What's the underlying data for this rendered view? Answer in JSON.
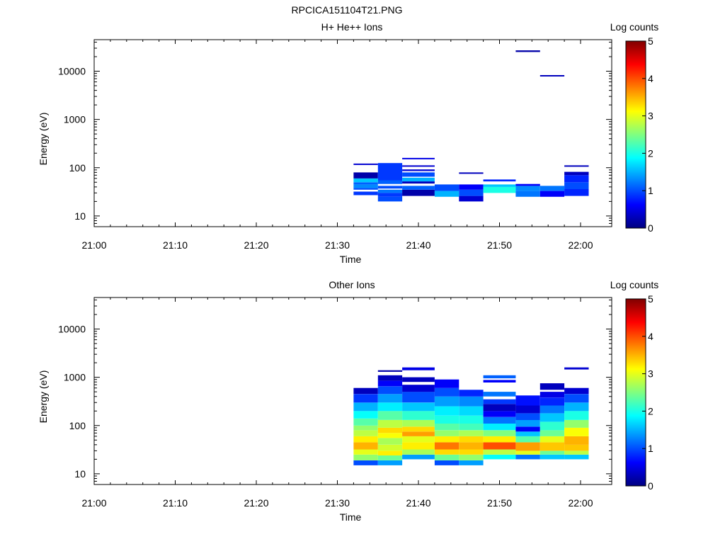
{
  "figure": {
    "title": "RPCICA151104T21.PNG"
  },
  "colorscale": {
    "name": "jet",
    "stops": [
      "#000080",
      "#0000ff",
      "#0080ff",
      "#00ffff",
      "#80ff80",
      "#ffff00",
      "#ff8000",
      "#ff0000",
      "#800000"
    ]
  },
  "chart_data": [
    {
      "type": "heatmap",
      "title": "H+ He++ Ions",
      "xlabel": "Time",
      "ylabel": "Energy (eV)",
      "x_ticks": [
        "21:00",
        "21:10",
        "21:20",
        "21:30",
        "21:40",
        "21:50",
        "22:00"
      ],
      "y_ticks": [
        "10",
        "100",
        "1000",
        "10000"
      ],
      "y_scale": "log",
      "ylim": [
        6,
        45000
      ],
      "colorbar_label": "Log counts",
      "colorbar_ticks": [
        "0",
        "1",
        "2",
        "3",
        "4",
        "5"
      ],
      "clim": [
        0,
        5
      ],
      "time_bins": [
        {
          "t0": "21:32",
          "t1": "21:35",
          "cells": [
            [
              27,
              32,
              0.9
            ],
            [
              35,
              38,
              1.0
            ],
            [
              38,
              45,
              1.3
            ],
            [
              45,
              50,
              1.1
            ],
            [
              50,
              60,
              1.6
            ],
            [
              60,
              80,
              0.2
            ],
            [
              115,
              122,
              0.4
            ]
          ]
        },
        {
          "t0": "21:35",
          "t1": "21:38",
          "cells": [
            [
              20,
              25,
              1.0
            ],
            [
              25,
              30,
              0.9
            ],
            [
              30,
              35,
              1.2
            ],
            [
              37,
              42,
              1.0
            ],
            [
              46,
              55,
              1.1
            ],
            [
              55,
              125,
              0.9
            ]
          ]
        },
        {
          "t0": "21:38",
          "t1": "21:42",
          "cells": [
            [
              26,
              35,
              0.2
            ],
            [
              35,
              42,
              1.1
            ],
            [
              47,
              52,
              0.3
            ],
            [
              52,
              62,
              1.5
            ],
            [
              65,
              80,
              1.0
            ],
            [
              85,
              92,
              0.4
            ],
            [
              105,
              112,
              0.4
            ],
            [
              150,
              160,
              0.5
            ]
          ]
        },
        {
          "t0": "21:42",
          "t1": "21:45",
          "cells": [
            [
              25,
              33,
              1.5
            ],
            [
              33,
              45,
              1.0
            ]
          ]
        },
        {
          "t0": "21:45",
          "t1": "21:48",
          "cells": [
            [
              20,
              26,
              0.4
            ],
            [
              26,
              35,
              1.0
            ],
            [
              35,
              45,
              0.6
            ],
            [
              75,
              80,
              0.3
            ]
          ]
        },
        {
          "t0": "21:48",
          "t1": "21:52",
          "cells": [
            [
              30,
              40,
              2.0
            ],
            [
              40,
              45,
              1.6
            ],
            [
              52,
              57,
              0.8
            ]
          ]
        },
        {
          "t0": "21:52",
          "t1": "21:55",
          "cells": [
            [
              25,
              33,
              1.2
            ],
            [
              33,
              42,
              1.3
            ],
            [
              42,
              46,
              0.6
            ],
            [
              25000,
              27000,
              0.2
            ]
          ]
        },
        {
          "t0": "21:55",
          "t1": "21:58",
          "cells": [
            [
              25,
              33,
              0.6
            ],
            [
              33,
              42,
              1.2
            ],
            [
              7800,
              8300,
              0.3
            ]
          ]
        },
        {
          "t0": "21:58",
          "t1": "22:01",
          "cells": [
            [
              26,
              36,
              0.8
            ],
            [
              36,
              50,
              1.0
            ],
            [
              50,
              70,
              0.8
            ],
            [
              70,
              82,
              0.3
            ],
            [
              105,
              112,
              0.3
            ]
          ]
        }
      ]
    },
    {
      "type": "heatmap",
      "title": "Other Ions",
      "xlabel": "Time",
      "ylabel": "Energy (eV)",
      "x_ticks": [
        "21:00",
        "21:10",
        "21:20",
        "21:30",
        "21:40",
        "21:50",
        "22:00"
      ],
      "y_ticks": [
        "10",
        "100",
        "1000",
        "10000"
      ],
      "y_scale": "log",
      "ylim": [
        6,
        45000
      ],
      "colorbar_label": "Log counts",
      "colorbar_ticks": [
        "0",
        "1",
        "2",
        "3",
        "4",
        "5"
      ],
      "clim": [
        0,
        5
      ],
      "time_bins": [
        {
          "t0": "21:32",
          "t1": "21:35",
          "cells": [
            [
              15,
              19,
              1.0
            ],
            [
              19,
              25,
              2.6
            ],
            [
              25,
              32,
              3.0
            ],
            [
              32,
              45,
              3.5
            ],
            [
              45,
              60,
              3.2
            ],
            [
              60,
              80,
              2.8
            ],
            [
              80,
              100,
              2.6
            ],
            [
              100,
              140,
              2.3
            ],
            [
              140,
              200,
              1.9
            ],
            [
              200,
              300,
              1.5
            ],
            [
              300,
              450,
              0.9
            ],
            [
              450,
              600,
              0.3
            ]
          ]
        },
        {
          "t0": "21:35",
          "t1": "21:38",
          "cells": [
            [
              15,
              19,
              1.4
            ],
            [
              19,
              24,
              2.4
            ],
            [
              24,
              30,
              3.2
            ],
            [
              30,
              40,
              2.9
            ],
            [
              40,
              55,
              2.7
            ],
            [
              55,
              70,
              3.1
            ],
            [
              70,
              90,
              3.3
            ],
            [
              90,
              130,
              2.8
            ],
            [
              130,
              200,
              2.3
            ],
            [
              200,
              300,
              1.8
            ],
            [
              300,
              450,
              1.4
            ],
            [
              450,
              650,
              1.0
            ],
            [
              650,
              850,
              0.6
            ],
            [
              850,
              1100,
              0.3
            ],
            [
              1300,
              1400,
              0.2
            ]
          ]
        },
        {
          "t0": "21:38",
          "t1": "21:42",
          "cells": [
            [
              20,
              25,
              1.4
            ],
            [
              25,
              32,
              2.7
            ],
            [
              32,
              45,
              3.2
            ],
            [
              45,
              60,
              3.0
            ],
            [
              60,
              75,
              3.6
            ],
            [
              75,
              95,
              3.3
            ],
            [
              95,
              130,
              2.7
            ],
            [
              130,
              200,
              2.1
            ],
            [
              200,
              300,
              1.6
            ],
            [
              300,
              500,
              1.0
            ],
            [
              500,
              700,
              0.4
            ],
            [
              800,
              1000,
              0.3
            ],
            [
              1400,
              1600,
              0.5
            ]
          ]
        },
        {
          "t0": "21:42",
          "t1": "21:45",
          "cells": [
            [
              15,
              19,
              1.0
            ],
            [
              19,
              25,
              2.4
            ],
            [
              25,
              32,
              3.3
            ],
            [
              32,
              45,
              3.8
            ],
            [
              45,
              60,
              3.2
            ],
            [
              60,
              80,
              2.6
            ],
            [
              80,
              110,
              2.3
            ],
            [
              110,
              160,
              2.0
            ],
            [
              160,
              250,
              1.8
            ],
            [
              250,
              400,
              1.4
            ],
            [
              400,
              600,
              1.0
            ],
            [
              600,
              900,
              0.6
            ]
          ]
        },
        {
          "t0": "21:45",
          "t1": "21:48",
          "cells": [
            [
              15,
              19,
              1.4
            ],
            [
              19,
              25,
              2.6
            ],
            [
              25,
              32,
              3.3
            ],
            [
              32,
              45,
              3.5
            ],
            [
              45,
              60,
              3.3
            ],
            [
              60,
              80,
              2.7
            ],
            [
              80,
              110,
              2.2
            ],
            [
              110,
              160,
              2.0
            ],
            [
              160,
              250,
              1.7
            ],
            [
              250,
              400,
              1.3
            ],
            [
              400,
              550,
              0.8
            ]
          ]
        },
        {
          "t0": "21:48",
          "t1": "21:52",
          "cells": [
            [
              20,
              25,
              1.9
            ],
            [
              25,
              32,
              2.8
            ],
            [
              32,
              45,
              4.0
            ],
            [
              45,
              60,
              3.2
            ],
            [
              60,
              80,
              2.5
            ],
            [
              80,
              110,
              1.8
            ],
            [
              110,
              150,
              1.2
            ],
            [
              150,
              200,
              0.6
            ],
            [
              200,
              280,
              0.3
            ],
            [
              280,
              350,
              0.9
            ],
            [
              400,
              500,
              1.2
            ],
            [
              780,
              880,
              0.6
            ],
            [
              950,
              1100,
              1.1
            ]
          ]
        },
        {
          "t0": "21:52",
          "t1": "21:55",
          "cells": [
            [
              20,
              25,
              1.2
            ],
            [
              25,
              30,
              3.0
            ],
            [
              30,
              45,
              3.6
            ],
            [
              45,
              60,
              2.3
            ],
            [
              60,
              75,
              1.6
            ],
            [
              75,
              95,
              0.6
            ],
            [
              95,
              130,
              1.4
            ],
            [
              130,
              180,
              1.0
            ],
            [
              180,
              260,
              0.4
            ],
            [
              260,
              420,
              0.7
            ]
          ]
        },
        {
          "t0": "21:55",
          "t1": "21:58",
          "cells": [
            [
              20,
              25,
              1.6
            ],
            [
              25,
              30,
              2.4
            ],
            [
              30,
              45,
              3.4
            ],
            [
              45,
              60,
              3.0
            ],
            [
              60,
              80,
              2.4
            ],
            [
              80,
              120,
              2.1
            ],
            [
              120,
              180,
              1.6
            ],
            [
              180,
              260,
              1.2
            ],
            [
              260,
              380,
              0.8
            ],
            [
              380,
              500,
              0.5
            ],
            [
              550,
              750,
              0.3
            ]
          ]
        },
        {
          "t0": "21:58",
          "t1": "22:01",
          "cells": [
            [
              20,
              25,
              1.6
            ],
            [
              25,
              30,
              2.8
            ],
            [
              30,
              40,
              3.4
            ],
            [
              40,
              60,
              3.5
            ],
            [
              60,
              90,
              3.1
            ],
            [
              90,
              130,
              2.6
            ],
            [
              130,
              200,
              2.0
            ],
            [
              200,
              300,
              1.5
            ],
            [
              300,
              450,
              1.0
            ],
            [
              450,
              600,
              0.4
            ],
            [
              1450,
              1600,
              0.4
            ]
          ]
        }
      ]
    }
  ]
}
